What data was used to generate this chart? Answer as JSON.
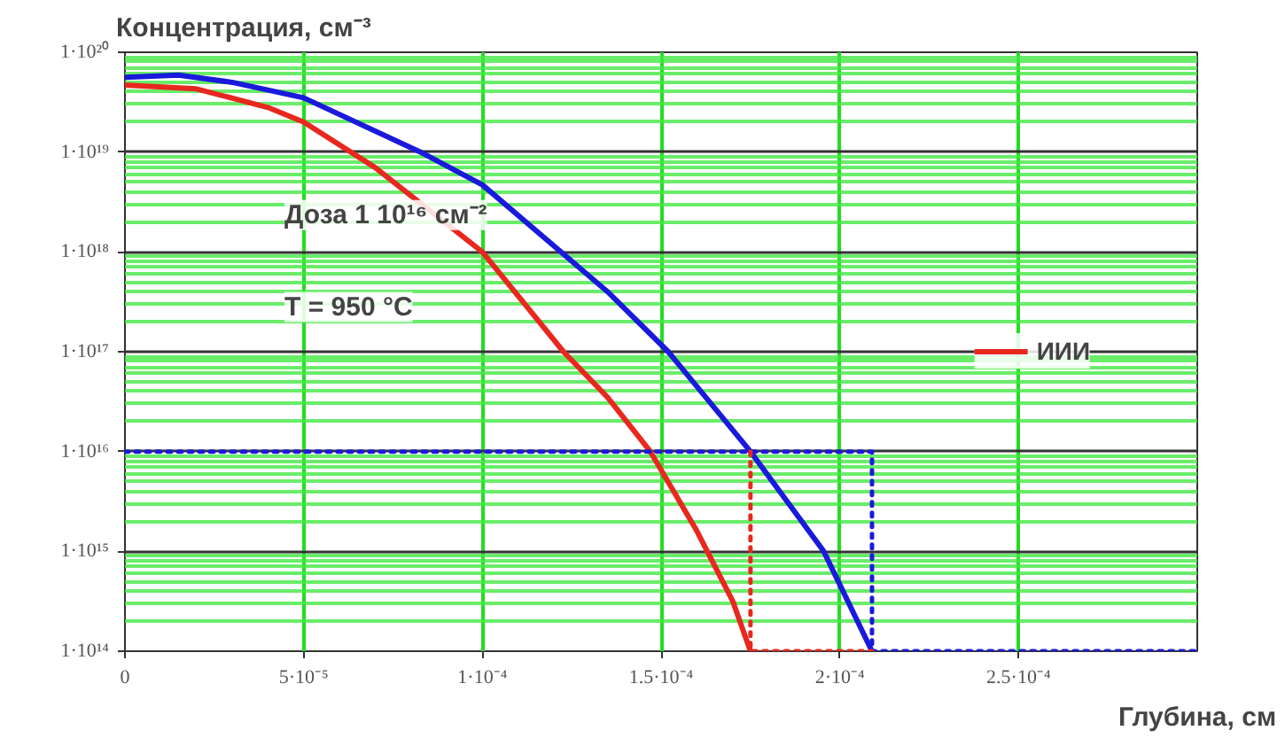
{
  "chart_data": {
    "type": "line",
    "title": "Концентрация, см⁻³",
    "xlabel": "Глубина, см",
    "log": "y",
    "grid": true,
    "legend": "right",
    "annotations": [
      "Доза 1 10¹⁶ см⁻²",
      "T = 950 °C"
    ],
    "xlim": [
      0,
      0.0003
    ],
    "ylim": [
      100000000000000.0,
      1e+20
    ],
    "xticks": [
      0,
      {
        "value": 5e-05,
        "label": "5·10⁻⁵"
      },
      {
        "value": 0.0001,
        "label": "1·10⁻⁴"
      },
      {
        "value": 0.00015,
        "label": "1.5·10⁻⁴"
      },
      {
        "value": 0.0002,
        "label": "2·10⁻⁴"
      },
      {
        "value": 0.00025,
        "label": "2.5·10⁻⁴"
      }
    ],
    "yticks": [
      {
        "value": 100000000000000.0,
        "label": "1·10¹⁴"
      },
      {
        "value": 200000000000000.0,
        "label": null
      },
      {
        "value": 300000000000000.0,
        "label": null
      },
      {
        "value": 400000000000000.0,
        "label": null
      },
      {
        "value": 500000000000000.0,
        "label": null
      },
      {
        "value": 600000000000000.0,
        "label": null
      },
      {
        "value": 700000000000000.0,
        "label": null
      },
      {
        "value": 800000000000000.0,
        "label": null
      },
      {
        "value": 900000000000000.0,
        "label": null
      },
      {
        "value": 1000000000000000.0,
        "label": "1·10¹⁵"
      },
      {
        "value": 2000000000000000.0,
        "label": null
      },
      {
        "value": 3000000000000000.0,
        "label": null
      },
      {
        "value": 4000000000000000.0,
        "label": null
      },
      {
        "value": 5000000000000000.0,
        "label": null
      },
      {
        "value": 6000000000000000.0,
        "label": null
      },
      {
        "value": 7000000000000000.0,
        "label": null
      },
      {
        "value": 8000000000000000.0,
        "label": null
      },
      {
        "value": 9000000000000000.0,
        "label": null
      },
      {
        "value": 1e+16,
        "label": "1·10¹⁶"
      },
      {
        "value": 2e+16,
        "label": null
      },
      {
        "value": 3e+16,
        "label": null
      },
      {
        "value": 4e+16,
        "label": null
      },
      {
        "value": 5e+16,
        "label": null
      },
      {
        "value": 6e+16,
        "label": null
      },
      {
        "value": 7e+16,
        "label": null
      },
      {
        "value": 8e+16,
        "label": null
      },
      {
        "value": 9e+16,
        "label": null
      },
      {
        "value": 1e+17,
        "label": "1·10¹⁷"
      },
      {
        "value": 2e+17,
        "label": null
      },
      {
        "value": 3e+17,
        "label": null
      },
      {
        "value": 4e+17,
        "label": null
      },
      {
        "value": 5e+17,
        "label": null
      },
      {
        "value": 6e+17,
        "label": null
      },
      {
        "value": 7e+17,
        "label": null
      },
      {
        "value": 8e+17,
        "label": null
      },
      {
        "value": 9e+17,
        "label": null
      },
      {
        "value": 1e+18,
        "label": "1·10¹⁸"
      },
      {
        "value": 2e+18,
        "label": null
      },
      {
        "value": 3e+18,
        "label": null
      },
      {
        "value": 4e+18,
        "label": null
      },
      {
        "value": 5e+18,
        "label": null
      },
      {
        "value": 6e+18,
        "label": null
      },
      {
        "value": 7e+18,
        "label": null
      },
      {
        "value": 8e+18,
        "label": null
      },
      {
        "value": 9e+18,
        "label": null
      },
      {
        "value": 1e+19,
        "label": "1·10¹⁹"
      },
      {
        "value": 2e+19,
        "label": null
      },
      {
        "value": 3e+19,
        "label": null
      },
      {
        "value": 4e+19,
        "label": null
      },
      {
        "value": 5e+19,
        "label": null
      },
      {
        "value": 6e+19,
        "label": null
      },
      {
        "value": 7e+19,
        "label": null
      },
      {
        "value": 8e+19,
        "label": null
      },
      {
        "value": 9e+19,
        "label": null
      },
      {
        "value": 1e+20,
        "label": "1·10²⁰"
      }
    ],
    "series": [
      {
        "name": "ИИИ",
        "color": "#e8281e",
        "line_style": "solid",
        "x": [
          0,
          2e-05,
          4e-05,
          5e-05,
          7e-05,
          0.0001,
          0.0001227,
          0.000135,
          0.000147,
          0.00016,
          0.00017,
          0.000175
        ],
        "values": [
          4.7e+19,
          4.3e+19,
          2.8e+19,
          2e+19,
          7e+18,
          1e+18,
          1e+17,
          3.5e+16,
          1e+16,
          1600000000000000.0,
          320000000000000.0,
          100000000000000.0
        ]
      },
      {
        "color": "#1a1adc",
        "line_style": "solid",
        "x": [
          0,
          1.5e-05,
          3e-05,
          5e-05,
          8.27e-05,
          0.0001,
          0.000135,
          0.000152,
          0.000175,
          0.0001955,
          0.000209
        ],
        "values": [
          5.6e+19,
          5.9e+19,
          5e+19,
          3.5e+19,
          1e+19,
          4.7e+18,
          4e+17,
          1e+17,
          1e+16,
          1000000000000000.0,
          100000000000000.0
        ]
      },
      {
        "color": "#1a1adc",
        "line_style": "dotted",
        "x": [
          0,
          0.000209,
          0.000209,
          0.0003
        ],
        "values": [
          1e+16,
          1e+16,
          100000000000000.0,
          100000000000000.0
        ]
      },
      {
        "color": "#e8281e",
        "line_style": "dotted",
        "x": [
          0.000175,
          0.000175,
          0.000209
        ],
        "values": [
          1e+16,
          100000000000000.0,
          100000000000000.0
        ]
      }
    ]
  }
}
